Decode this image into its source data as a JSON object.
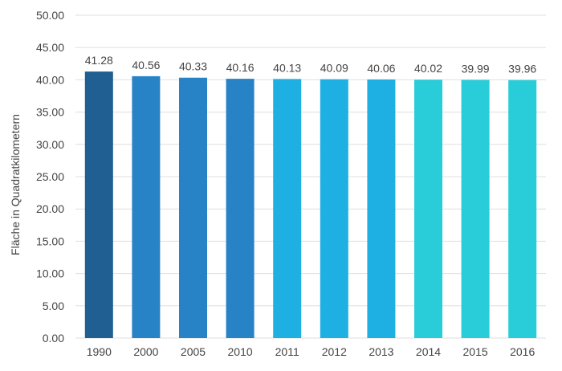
{
  "chart_data": {
    "type": "bar",
    "title": "",
    "xlabel": "",
    "ylabel": "Fläche in Quadratkilometern",
    "categories": [
      "1990",
      "2000",
      "2005",
      "2010",
      "2011",
      "2012",
      "2013",
      "2014",
      "2015",
      "2016"
    ],
    "values": [
      41.28,
      40.56,
      40.33,
      40.16,
      40.13,
      40.09,
      40.06,
      40.02,
      39.99,
      39.96
    ],
    "value_labels": [
      "41.28",
      "40.56",
      "40.33",
      "40.16",
      "40.13",
      "40.09",
      "40.06",
      "40.02",
      "39.99",
      "39.96"
    ],
    "ylim": [
      0,
      50
    ],
    "yticks": [
      "0.00",
      "5.00",
      "10.00",
      "15.00",
      "20.00",
      "25.00",
      "30.00",
      "35.00",
      "40.00",
      "45.00",
      "50.00"
    ],
    "ytick_values": [
      0,
      5,
      10,
      15,
      20,
      25,
      30,
      35,
      40,
      45,
      50
    ],
    "grid": true,
    "legend": "none",
    "bar_colors": [
      "#1f5f91",
      "#2783c6",
      "#2783c6",
      "#2783c6",
      "#1fb0e3",
      "#1fb0e3",
      "#1fb0e3",
      "#28cdd9",
      "#28cdd9",
      "#28cdd9"
    ]
  },
  "colors": {
    "grid": "#dfdfdf",
    "axis_text": "#444444",
    "label_text": "#444444"
  }
}
